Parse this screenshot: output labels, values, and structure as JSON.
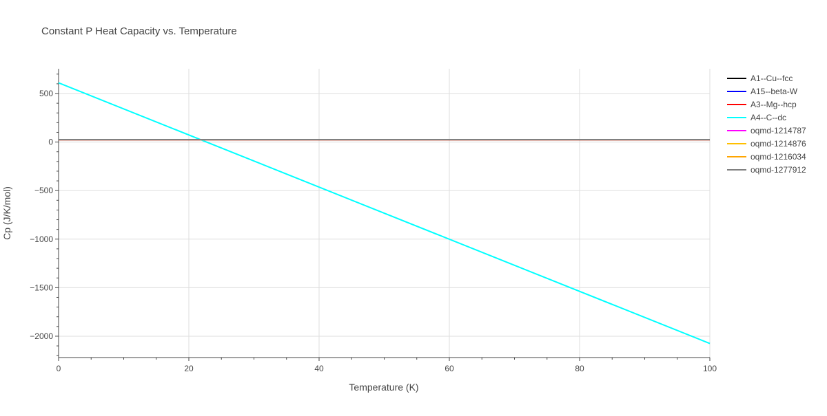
{
  "chart_data": {
    "type": "line",
    "title": "Constant P Heat Capacity vs. Temperature",
    "xlabel": "Temperature (K)",
    "ylabel": "Cp (J/K/mol)",
    "xlim": [
      0,
      100
    ],
    "ylim": [
      -2220,
      755
    ],
    "x_ticks": [
      0,
      20,
      40,
      60,
      80,
      100
    ],
    "x_tick_labels": [
      "0",
      "20",
      "40",
      "60",
      "80",
      "100"
    ],
    "y_ticks": [
      500,
      0,
      -500,
      -1000,
      -1500,
      -2000
    ],
    "y_tick_labels": [
      "500",
      "0",
      "−500",
      "−1000",
      "−1500",
      "−2000"
    ],
    "grid": true,
    "legend_position": "right",
    "series": [
      {
        "name": "A1--Cu--fcc",
        "color": "#000000",
        "x": [
          0,
          100
        ],
        "y": [
          24.4,
          24.4
        ]
      },
      {
        "name": "A15--beta-W",
        "color": "#0000ff",
        "x": [
          0,
          100
        ],
        "y": [
          24.5,
          24.5
        ]
      },
      {
        "name": "A3--Mg--hcp",
        "color": "#ff0000",
        "x": [
          0,
          100
        ],
        "y": [
          24.6,
          24.6
        ]
      },
      {
        "name": "A4--C--dc",
        "color": "#00ffff",
        "x": [
          0,
          100
        ],
        "y": [
          610,
          -2075
        ]
      },
      {
        "name": "oqmd-1214787",
        "color": "#ff00ff",
        "x": [
          0,
          100
        ],
        "y": [
          24.7,
          24.7
        ]
      },
      {
        "name": "oqmd-1214876",
        "color": "#ffbf00",
        "x": [
          0,
          100
        ],
        "y": [
          24.8,
          24.8
        ]
      },
      {
        "name": "oqmd-1216034",
        "color": "#ffa500",
        "x": [
          0,
          100
        ],
        "y": [
          24.9,
          24.9
        ]
      },
      {
        "name": "oqmd-1277912",
        "color": "#808080",
        "x": [
          0,
          100
        ],
        "y": [
          25.0,
          25.0
        ]
      }
    ]
  }
}
